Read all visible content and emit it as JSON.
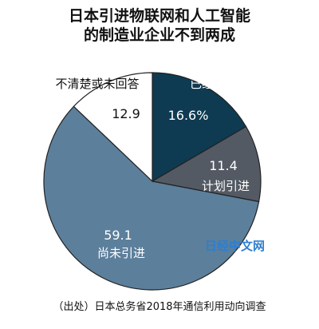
{
  "title_line1": "日本引进物联网和人工智能",
  "title_line2": "的制造业企业不到两成",
  "source": "（出处）日本总务省2018年通信利用动向调查",
  "watermark": "日经中文网",
  "colors": {
    "adopted": "#0e3a52",
    "planned": "#535a63",
    "not_adopted": "#5c7f9b",
    "unknown": "#ffffff",
    "watermark": "#2d7fd0"
  },
  "chart_data": {
    "type": "pie",
    "title": "日本引进物联网和人工智能的制造业企业不到两成",
    "slices": [
      {
        "label": "已经引进",
        "value": 16.6,
        "value_label": "16.6%",
        "color": "#0e3a52"
      },
      {
        "label": "计划引进",
        "value": 11.4,
        "value_label": "11.4",
        "color": "#535a63"
      },
      {
        "label": "尚未引进",
        "value": 59.1,
        "value_label": "59.1",
        "color": "#5c7f9b"
      },
      {
        "label": "不清楚或未回答",
        "value": 12.9,
        "value_label": "12.9",
        "color": "#ffffff"
      }
    ],
    "start_angle_deg": 0,
    "direction": "clockwise"
  }
}
